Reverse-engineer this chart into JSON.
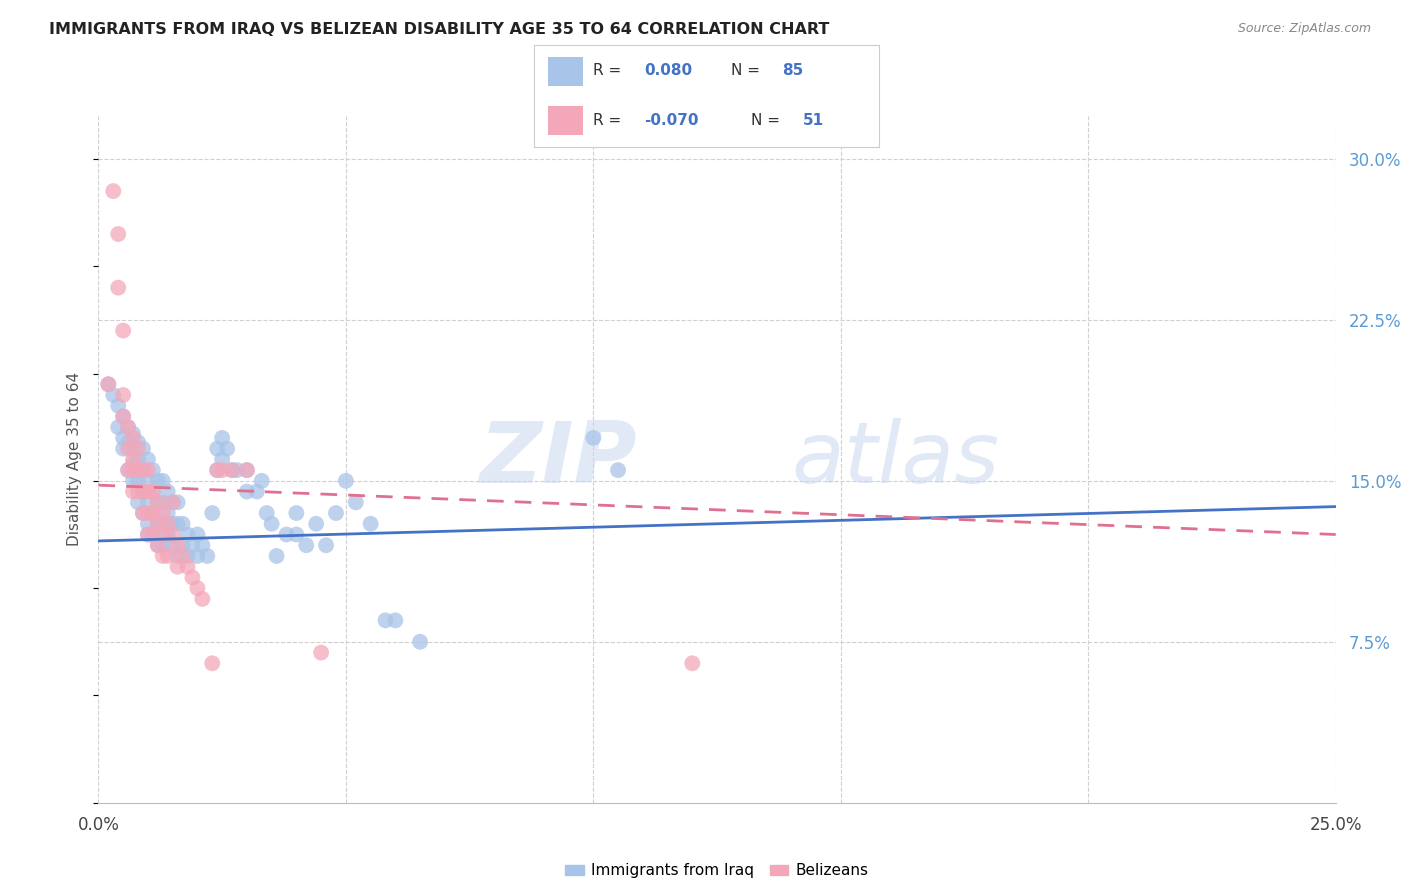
{
  "title": "IMMIGRANTS FROM IRAQ VS BELIZEAN DISABILITY AGE 35 TO 64 CORRELATION CHART",
  "source": "Source: ZipAtlas.com",
  "ylabel": "Disability Age 35 to 64",
  "ytick_labels": [
    "7.5%",
    "15.0%",
    "22.5%",
    "30.0%"
  ],
  "ytick_values": [
    0.075,
    0.15,
    0.225,
    0.3
  ],
  "xlim": [
    0.0,
    0.25
  ],
  "ylim": [
    0.0,
    0.32
  ],
  "legend_bottom_blue": "Immigrants from Iraq",
  "legend_bottom_pink": "Belizeans",
  "blue_color": "#a8c4e8",
  "pink_color": "#f4a7b9",
  "trend_blue": "#4472c4",
  "trend_pink": "#e07090",
  "blue_scatter": [
    [
      0.002,
      0.195
    ],
    [
      0.003,
      0.19
    ],
    [
      0.004,
      0.185
    ],
    [
      0.004,
      0.175
    ],
    [
      0.005,
      0.18
    ],
    [
      0.005,
      0.17
    ],
    [
      0.005,
      0.165
    ],
    [
      0.006,
      0.175
    ],
    [
      0.006,
      0.168
    ],
    [
      0.006,
      0.155
    ],
    [
      0.007,
      0.172
    ],
    [
      0.007,
      0.165
    ],
    [
      0.007,
      0.158
    ],
    [
      0.007,
      0.15
    ],
    [
      0.008,
      0.168
    ],
    [
      0.008,
      0.16
    ],
    [
      0.008,
      0.15
    ],
    [
      0.008,
      0.14
    ],
    [
      0.009,
      0.165
    ],
    [
      0.009,
      0.155
    ],
    [
      0.009,
      0.145
    ],
    [
      0.009,
      0.135
    ],
    [
      0.01,
      0.16
    ],
    [
      0.01,
      0.15
    ],
    [
      0.01,
      0.14
    ],
    [
      0.01,
      0.13
    ],
    [
      0.01,
      0.125
    ],
    [
      0.011,
      0.155
    ],
    [
      0.011,
      0.145
    ],
    [
      0.011,
      0.135
    ],
    [
      0.011,
      0.125
    ],
    [
      0.012,
      0.15
    ],
    [
      0.012,
      0.14
    ],
    [
      0.012,
      0.13
    ],
    [
      0.012,
      0.12
    ],
    [
      0.013,
      0.15
    ],
    [
      0.013,
      0.14
    ],
    [
      0.013,
      0.13
    ],
    [
      0.013,
      0.12
    ],
    [
      0.014,
      0.145
    ],
    [
      0.014,
      0.135
    ],
    [
      0.014,
      0.125
    ],
    [
      0.015,
      0.14
    ],
    [
      0.015,
      0.13
    ],
    [
      0.015,
      0.12
    ],
    [
      0.016,
      0.14
    ],
    [
      0.016,
      0.13
    ],
    [
      0.016,
      0.115
    ],
    [
      0.017,
      0.13
    ],
    [
      0.017,
      0.12
    ],
    [
      0.018,
      0.125
    ],
    [
      0.018,
      0.115
    ],
    [
      0.019,
      0.12
    ],
    [
      0.02,
      0.125
    ],
    [
      0.02,
      0.115
    ],
    [
      0.021,
      0.12
    ],
    [
      0.022,
      0.115
    ],
    [
      0.023,
      0.135
    ],
    [
      0.024,
      0.165
    ],
    [
      0.024,
      0.155
    ],
    [
      0.025,
      0.17
    ],
    [
      0.025,
      0.16
    ],
    [
      0.026,
      0.165
    ],
    [
      0.027,
      0.155
    ],
    [
      0.028,
      0.155
    ],
    [
      0.03,
      0.155
    ],
    [
      0.03,
      0.145
    ],
    [
      0.032,
      0.145
    ],
    [
      0.033,
      0.15
    ],
    [
      0.034,
      0.135
    ],
    [
      0.035,
      0.13
    ],
    [
      0.036,
      0.115
    ],
    [
      0.038,
      0.125
    ],
    [
      0.04,
      0.135
    ],
    [
      0.04,
      0.125
    ],
    [
      0.042,
      0.12
    ],
    [
      0.044,
      0.13
    ],
    [
      0.046,
      0.12
    ],
    [
      0.048,
      0.135
    ],
    [
      0.05,
      0.15
    ],
    [
      0.052,
      0.14
    ],
    [
      0.055,
      0.13
    ],
    [
      0.058,
      0.085
    ],
    [
      0.06,
      0.085
    ],
    [
      0.065,
      0.075
    ],
    [
      0.1,
      0.17
    ],
    [
      0.105,
      0.155
    ]
  ],
  "pink_scatter": [
    [
      0.002,
      0.195
    ],
    [
      0.003,
      0.285
    ],
    [
      0.004,
      0.265
    ],
    [
      0.004,
      0.24
    ],
    [
      0.005,
      0.22
    ],
    [
      0.005,
      0.19
    ],
    [
      0.005,
      0.18
    ],
    [
      0.006,
      0.175
    ],
    [
      0.006,
      0.165
    ],
    [
      0.006,
      0.155
    ],
    [
      0.007,
      0.17
    ],
    [
      0.007,
      0.16
    ],
    [
      0.007,
      0.155
    ],
    [
      0.007,
      0.145
    ],
    [
      0.008,
      0.165
    ],
    [
      0.008,
      0.155
    ],
    [
      0.008,
      0.145
    ],
    [
      0.009,
      0.155
    ],
    [
      0.009,
      0.145
    ],
    [
      0.009,
      0.135
    ],
    [
      0.01,
      0.155
    ],
    [
      0.01,
      0.145
    ],
    [
      0.01,
      0.135
    ],
    [
      0.01,
      0.125
    ],
    [
      0.011,
      0.145
    ],
    [
      0.011,
      0.135
    ],
    [
      0.011,
      0.125
    ],
    [
      0.012,
      0.14
    ],
    [
      0.012,
      0.13
    ],
    [
      0.012,
      0.12
    ],
    [
      0.013,
      0.135
    ],
    [
      0.013,
      0.125
    ],
    [
      0.013,
      0.115
    ],
    [
      0.014,
      0.13
    ],
    [
      0.014,
      0.115
    ],
    [
      0.015,
      0.14
    ],
    [
      0.015,
      0.125
    ],
    [
      0.016,
      0.12
    ],
    [
      0.016,
      0.11
    ],
    [
      0.017,
      0.115
    ],
    [
      0.018,
      0.11
    ],
    [
      0.019,
      0.105
    ],
    [
      0.02,
      0.1
    ],
    [
      0.021,
      0.095
    ],
    [
      0.023,
      0.065
    ],
    [
      0.024,
      0.155
    ],
    [
      0.025,
      0.155
    ],
    [
      0.027,
      0.155
    ],
    [
      0.03,
      0.155
    ],
    [
      0.045,
      0.07
    ],
    [
      0.12,
      0.065
    ]
  ],
  "blue_trend_x": [
    0.0,
    0.25
  ],
  "blue_trend_y": [
    0.122,
    0.138
  ],
  "pink_trend_x": [
    0.0,
    0.25
  ],
  "pink_trend_y": [
    0.148,
    0.125
  ],
  "watermark_zip": "ZIP",
  "watermark_atlas": "atlas",
  "background_color": "#ffffff",
  "grid_color": "#d0d0d0"
}
